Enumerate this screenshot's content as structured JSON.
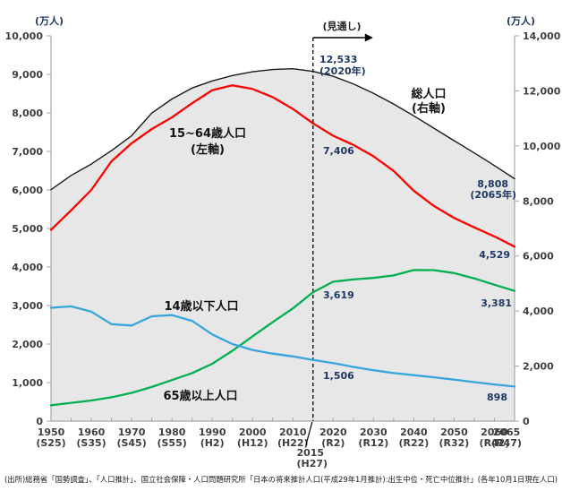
{
  "header": {
    "left_axis_unit": "(万人)",
    "right_axis_unit": "(万人)",
    "forecast_label": "(見通し)"
  },
  "series_labels": {
    "total": {
      "line1": "総人口",
      "line2": "(右軸)"
    },
    "working": {
      "line1": "15~64歳人口",
      "line2": "(左軸)"
    },
    "child": "14歳以下人口",
    "elderly": "65歳以上人口"
  },
  "annotations": {
    "total_2020": {
      "value": "12,533",
      "note": "(2020年)"
    },
    "total_2065": {
      "value": "8,808",
      "note": "(2065年)"
    },
    "working_2020": {
      "value": "7,406"
    },
    "working_2065": {
      "value": "4,529"
    },
    "elderly_2020": {
      "value": "3,619"
    },
    "elderly_2065": {
      "value": "3,381"
    },
    "child_2020": {
      "value": "1,506"
    },
    "child_2065": {
      "value": "898"
    }
  },
  "source": "(出所)総務省「国勢調査」、「人口推計」、国立社会保障・人口問題研究所「日本の将来推計人口(平成29年1月推計):出生中位・死亡中位推計」(各年10月1日現在人口)",
  "colors": {
    "total_line": "#1a1a1a",
    "working_line": "#ff0000",
    "child_line": "#36a6dc",
    "elderly_line": "#00b050",
    "area_fill": "#e7e7e7",
    "axis": "#a6a6a6",
    "annotation_text": "#1f3864",
    "forecast_line": "#000000"
  },
  "chart_data": {
    "type": "line",
    "title": "",
    "xlabel": "",
    "ylabel_left": "(万人)",
    "ylabel_right": "(万人)",
    "left_axis": {
      "range": [
        0,
        10000
      ],
      "tick_step": 1000
    },
    "right_axis": {
      "range": [
        0,
        14000
      ],
      "tick_step": 2000
    },
    "grid": false,
    "x": [
      1950,
      1955,
      1960,
      1965,
      1970,
      1975,
      1980,
      1985,
      1990,
      1995,
      2000,
      2005,
      2010,
      2015,
      2020,
      2025,
      2030,
      2035,
      2040,
      2045,
      2050,
      2055,
      2060,
      2065
    ],
    "x_ticks": [
      {
        "year": "1950",
        "era": "(S25)"
      },
      {
        "year": "1960",
        "era": "(S35)"
      },
      {
        "year": "1970",
        "era": "(S45)"
      },
      {
        "year": "1980",
        "era": "(S55)"
      },
      {
        "year": "1990",
        "era": "(H2)"
      },
      {
        "year": "2000",
        "era": "(H12)"
      },
      {
        "year": "2010",
        "era": "(H22)"
      },
      {
        "year": "2020",
        "era": "(R2)"
      },
      {
        "year": "2030",
        "era": "(R12)"
      },
      {
        "year": "2040",
        "era": "(R22)"
      },
      {
        "year": "2050",
        "era": "(R32)"
      },
      {
        "year": "2060",
        "era": "(R42)"
      },
      {
        "year": "2065",
        "era": "(R47)"
      }
    ],
    "forecast_marker": {
      "x": 2015,
      "year": "2015",
      "era": "(H27)"
    },
    "series": [
      {
        "name": "総人口(右軸)",
        "axis": "right",
        "color": "#1a1a1a",
        "fill_below": true,
        "values": [
          8411,
          8928,
          9342,
          9828,
          10372,
          11194,
          11706,
          12105,
          12361,
          12557,
          12693,
          12777,
          12806,
          12709,
          12533,
          12254,
          11913,
          11522,
          11092,
          10642,
          10192,
          9744,
          9284,
          8808
        ]
      },
      {
        "name": "15~64歳人口(左軸)",
        "axis": "left",
        "color": "#ff0000",
        "values": [
          4966,
          5473,
          6000,
          6744,
          7212,
          7581,
          7883,
          8251,
          8590,
          8716,
          8622,
          8409,
          8103,
          7728,
          7406,
          7170,
          6875,
          6494,
          5978,
          5584,
          5275,
          5028,
          4793,
          4529
        ]
      },
      {
        "name": "65歳以上人口",
        "axis": "left",
        "color": "#00b050",
        "values": [
          411,
          475,
          535,
          618,
          733,
          887,
          1065,
          1247,
          1489,
          1826,
          2201,
          2567,
          2925,
          3347,
          3619,
          3677,
          3716,
          3782,
          3921,
          3919,
          3841,
          3704,
          3540,
          3381
        ]
      },
      {
        "name": "14歳以下人口",
        "axis": "left",
        "color": "#36a6dc",
        "values": [
          2943,
          2980,
          2843,
          2517,
          2482,
          2722,
          2752,
          2603,
          2249,
          2001,
          1847,
          1752,
          1680,
          1589,
          1506,
          1407,
          1321,
          1246,
          1194,
          1138,
          1077,
          1012,
          951,
          898
        ]
      }
    ]
  }
}
